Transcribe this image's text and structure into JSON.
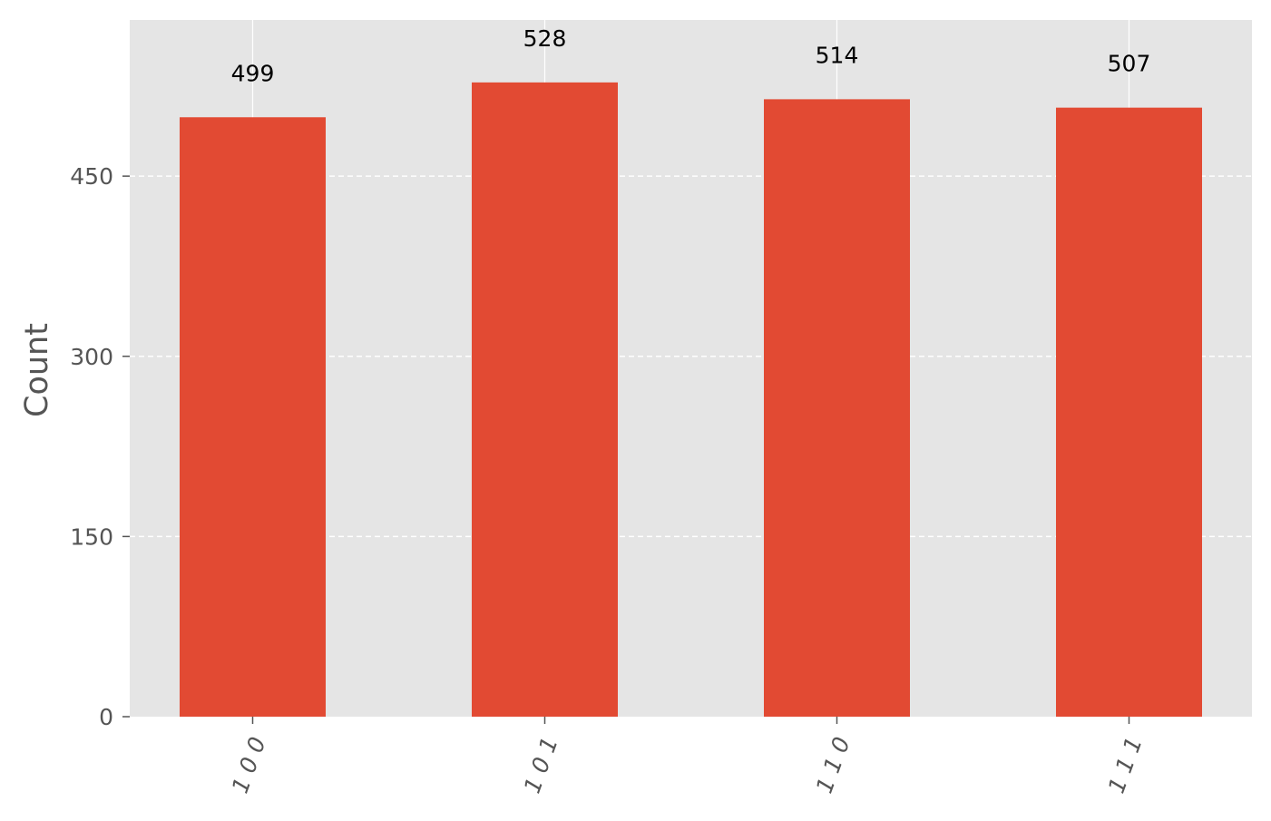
{
  "chart_data": {
    "type": "bar",
    "categories": [
      "1 0 0",
      "1 0 1",
      "1 1 0",
      "1 1 1"
    ],
    "values": [
      499,
      528,
      514,
      507
    ],
    "data_labels": [
      "499",
      "528",
      "514",
      "507"
    ],
    "title": "",
    "xlabel": "",
    "ylabel": "Count",
    "ylim": [
      0,
      580
    ],
    "yticks": [
      0,
      150,
      300,
      450
    ],
    "ytick_labels": [
      "0",
      "150",
      "300",
      "450"
    ],
    "grid": true,
    "x_tick_rotation_deg": 70,
    "bar_color": "#e24a33",
    "plot_background": "#e5e5e5",
    "grid_color": "#ffffff",
    "tick_label_color": "#555555",
    "data_label_color": "#000000"
  }
}
